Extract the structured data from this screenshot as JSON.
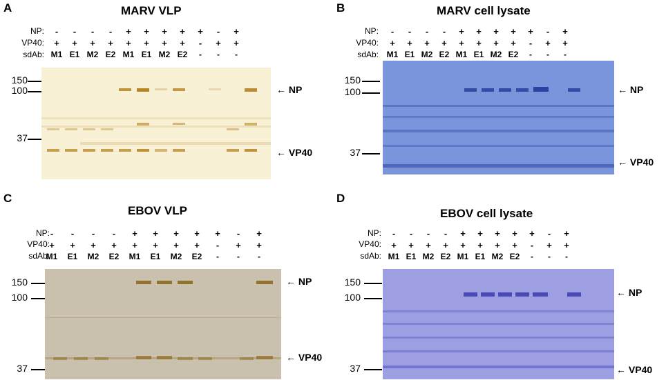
{
  "row_labels": {
    "np": "NP:",
    "vp40": "VP40:",
    "sdab": "sdAb:"
  },
  "lanes": {
    "np": [
      "-",
      "-",
      "-",
      "-",
      "+",
      "+",
      "+",
      "+",
      "+",
      "-",
      "+"
    ],
    "vp40": [
      "+",
      "+",
      "+",
      "+",
      "+",
      "+",
      "+",
      "+",
      "-",
      "+",
      "+"
    ],
    "sdab": [
      "M1",
      "E1",
      "M2",
      "E2",
      "M1",
      "E1",
      "M2",
      "E2",
      "-",
      "-",
      "-"
    ]
  },
  "band_labels": {
    "np": "← NP",
    "vp40": "← VP40"
  },
  "panels": [
    {
      "letter": "A",
      "title": "MARV VLP",
      "markers": [
        {
          "label": "150"
        },
        {
          "label": "100"
        },
        {
          "label": "37"
        }
      ]
    },
    {
      "letter": "B",
      "title": "MARV cell lysate",
      "markers": [
        {
          "label": "150"
        },
        {
          "label": "100"
        },
        {
          "label": "37"
        }
      ]
    },
    {
      "letter": "C",
      "title": "EBOV VLP",
      "markers": [
        {
          "label": "150"
        },
        {
          "label": "100"
        },
        {
          "label": "37"
        }
      ]
    },
    {
      "letter": "D",
      "title": "EBOV cell lysate",
      "markers": [
        {
          "label": "150"
        },
        {
          "label": "100"
        },
        {
          "label": "37"
        }
      ]
    }
  ],
  "colors": {
    "silver_bg": "#f8f1d6",
    "silver_band": "#b07a14",
    "coomassie_bg": "#7a95db",
    "coomassie_band": "#1f3a9a",
    "ebov_silver_bg": "#c9c0ad",
    "ebov_silver_band": "#8a6a20",
    "ebov_coomassie_bg": "#9e9fe3",
    "ebov_coomassie_band": "#3f40b0"
  }
}
